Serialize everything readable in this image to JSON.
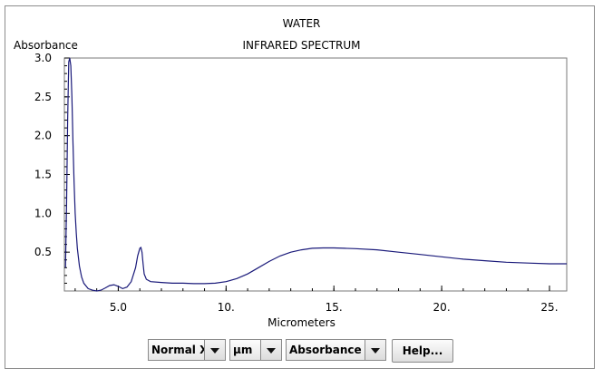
{
  "window": {
    "title": "WATER",
    "subtitle": "INFRARED SPECTRUM"
  },
  "controls": {
    "x_mode": "Normal X",
    "unit": "µm",
    "y_mode": "Absorbance",
    "help_label": "Help..."
  },
  "chart_data": {
    "type": "line",
    "title": "WATER",
    "subtitle": "INFRARED SPECTRUM",
    "xlabel": "Micrometers",
    "ylabel": "Absorbance",
    "xlim": [
      2.5,
      25.8
    ],
    "ylim": [
      0.0,
      3.0
    ],
    "xticks": [
      5.0,
      10.0,
      15.0,
      20.0,
      25.0
    ],
    "xtick_labels": [
      "5.0",
      "10.",
      "15.",
      "20.",
      "25."
    ],
    "yticks": [
      0.5,
      1.0,
      1.5,
      2.0,
      2.5,
      3.0
    ],
    "ytick_labels": [
      "0.5",
      "1.0",
      "1.5",
      "2.0",
      "2.5",
      "3.0"
    ],
    "grid": false,
    "line_color": "#1a1a7a",
    "series": [
      {
        "x": [
          2.55,
          2.6,
          2.65,
          2.7,
          2.75,
          2.8,
          2.85,
          2.9,
          2.95,
          3.0,
          3.05,
          3.1,
          3.2,
          3.3,
          3.4,
          3.6,
          3.8,
          4.0,
          4.2,
          4.4,
          4.6,
          4.8,
          5.0,
          5.2,
          5.4,
          5.6,
          5.8,
          5.9,
          6.0,
          6.05,
          6.1,
          6.15,
          6.2,
          6.3,
          6.5,
          7.0,
          7.5,
          8.0,
          8.5,
          9.0,
          9.5,
          10.0,
          10.5,
          11.0,
          11.5,
          12.0,
          12.5,
          13.0,
          13.5,
          14.0,
          14.5,
          15.0,
          15.5,
          16.0,
          17.0,
          18.0,
          19.0,
          20.0,
          21.0,
          22.0,
          23.0,
          24.0,
          25.0,
          25.8
        ],
        "y": [
          0.3,
          1.1,
          2.2,
          2.95,
          3.0,
          2.9,
          2.5,
          1.9,
          1.4,
          1.0,
          0.75,
          0.55,
          0.32,
          0.18,
          0.1,
          0.03,
          0.01,
          0.0,
          0.01,
          0.04,
          0.07,
          0.08,
          0.06,
          0.03,
          0.05,
          0.12,
          0.3,
          0.45,
          0.55,
          0.56,
          0.5,
          0.35,
          0.22,
          0.15,
          0.12,
          0.11,
          0.1,
          0.1,
          0.095,
          0.095,
          0.1,
          0.12,
          0.16,
          0.22,
          0.3,
          0.38,
          0.45,
          0.5,
          0.53,
          0.55,
          0.555,
          0.555,
          0.55,
          0.545,
          0.53,
          0.5,
          0.47,
          0.44,
          0.41,
          0.39,
          0.37,
          0.36,
          0.35,
          0.35
        ]
      }
    ]
  }
}
